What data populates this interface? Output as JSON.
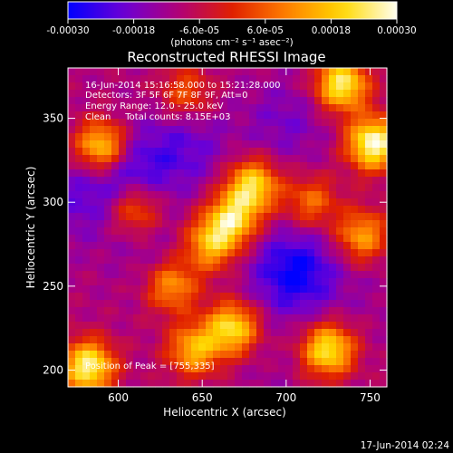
{
  "chart_data": {
    "type": "heatmap",
    "title": "Reconstructed RHESSI Image",
    "xlabel": "Heliocentric X (arcsec)",
    "ylabel": "Heliocentric Y (arcsec)",
    "xlim": [
      570,
      760
    ],
    "ylim": [
      190,
      380
    ],
    "xticks": [
      600,
      650,
      700,
      750
    ],
    "yticks": [
      200,
      250,
      300,
      350
    ],
    "x_tick_labels": [
      "600",
      "650",
      "700",
      "750"
    ],
    "y_tick_labels": [
      "200",
      "250",
      "300",
      "350"
    ],
    "colorbar": {
      "range": [
        -0.0003,
        0.0003
      ],
      "tick_values": [
        -0.0003,
        -0.00018,
        -6e-05,
        6e-05,
        0.00018,
        0.0003
      ],
      "tick_labels": [
        "-0.00030",
        "-0.00018",
        "-6.0e-05",
        "6.0e-05",
        "0.00018",
        "0.00030"
      ],
      "units_label": "(photons cm⁻² s⁻¹ asec⁻²)",
      "colors": [
        "#0000ff",
        "#6b00d6",
        "#b0007a",
        "#e02000",
        "#ff8000",
        "#ffd800",
        "#fffff0"
      ]
    },
    "annotations": [
      "16-Jun-2014 15:16:58.000 to 15:21:28.000",
      "Detectors: 3F 5F 6F 7F 8F 9F, Att=0",
      "Energy Range: 12.0 - 25.0 keV",
      "Clean     Total counts: 8.15E+03"
    ],
    "peak_label": "Position of Peak = [755,335]",
    "sources": [
      {
        "x": 752,
        "y": 335,
        "v": 0.0003
      },
      {
        "x": 733,
        "y": 370,
        "v": 0.00026
      },
      {
        "x": 590,
        "y": 333,
        "v": 0.00024
      },
      {
        "x": 582,
        "y": 202,
        "v": 0.00027
      },
      {
        "x": 680,
        "y": 310,
        "v": 0.00022
      },
      {
        "x": 668,
        "y": 290,
        "v": 0.0002
      },
      {
        "x": 655,
        "y": 275,
        "v": 0.00016
      },
      {
        "x": 632,
        "y": 250,
        "v": 0.00013
      },
      {
        "x": 668,
        "y": 225,
        "v": 0.00022
      },
      {
        "x": 645,
        "y": 212,
        "v": 0.00016
      },
      {
        "x": 725,
        "y": 212,
        "v": 0.00024
      },
      {
        "x": 745,
        "y": 280,
        "v": 0.00014
      },
      {
        "x": 610,
        "y": 296,
        "v": 0.00011
      },
      {
        "x": 715,
        "y": 300,
        "v": 8e-05
      },
      {
        "x": 640,
        "y": 365,
        "v": 6e-05
      }
    ],
    "minima": [
      {
        "x": 705,
        "y": 258,
        "v": -0.0003
      },
      {
        "x": 605,
        "y": 318,
        "v": -0.00024
      },
      {
        "x": 640,
        "y": 332,
        "v": -0.0002
      },
      {
        "x": 575,
        "y": 300,
        "v": -0.00018
      },
      {
        "x": 620,
        "y": 270,
        "v": -0.00014
      },
      {
        "x": 700,
        "y": 348,
        "v": -0.00018
      },
      {
        "x": 750,
        "y": 245,
        "v": -0.00012
      },
      {
        "x": 690,
        "y": 196,
        "v": -0.00012
      }
    ]
  },
  "footer_timestamp": "17-Jun-2014 02:24"
}
